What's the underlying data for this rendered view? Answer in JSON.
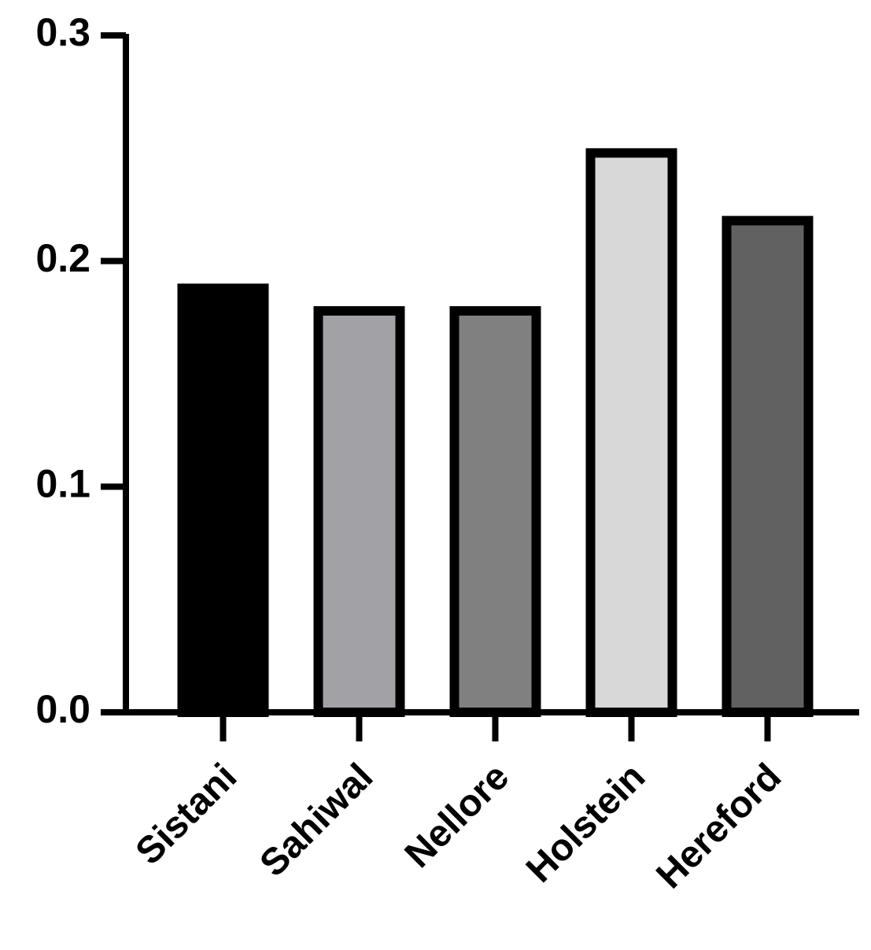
{
  "chart_data": {
    "type": "bar",
    "categories": [
      "Sistani",
      "Sahiwal",
      "Nellore",
      "Holstein",
      "Hereford"
    ],
    "values": [
      0.19,
      0.18,
      0.18,
      0.25,
      0.22
    ],
    "colors": [
      "#000000",
      "#a2a2a6",
      "#808080",
      "#d8d8d8",
      "#616161"
    ],
    "ylim": [
      0,
      0.3
    ],
    "yticks": [
      {
        "value": 0,
        "label": "0.0"
      },
      0.1,
      0.2,
      0.3
    ]
  }
}
